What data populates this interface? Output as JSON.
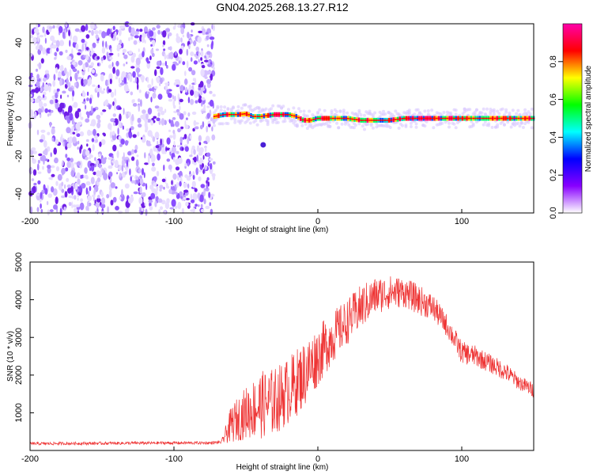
{
  "title": "GN04.2025.268.13.27.R12",
  "chart_data": [
    {
      "type": "heatmap",
      "xlabel": "Height of straight line (km)",
      "ylabel": "Frequency (Hz)",
      "xlim": [
        -200,
        150
      ],
      "ylim": [
        -50,
        50
      ],
      "xticks": [
        -200,
        -100,
        0,
        100
      ],
      "yticks": [
        -40,
        -20,
        0,
        20,
        40
      ],
      "noise_region_x": [
        -200,
        -72
      ],
      "ridge": {
        "x": [
          -72,
          -65,
          -60,
          -55,
          -50,
          -45,
          -40,
          -35,
          -30,
          -25,
          -20,
          -15,
          -10,
          -5,
          0,
          10,
          20,
          30,
          40,
          50,
          60,
          70,
          80,
          90,
          100,
          110,
          120,
          130,
          140,
          150
        ],
        "freq": [
          1,
          2,
          2,
          2,
          2.5,
          1,
          1,
          1.5,
          2,
          2,
          2,
          1,
          -1,
          -1,
          0,
          0,
          0,
          -1,
          -1,
          -1,
          0,
          0,
          0,
          0,
          0,
          0,
          0,
          0,
          0,
          0
        ]
      },
      "outlier": {
        "x": -38,
        "freq": -14
      },
      "grid": false
    },
    {
      "type": "line",
      "xlabel": "Height of straight line (km)",
      "ylabel": "SNR (10 * v/v)",
      "xlim": [
        -200,
        150
      ],
      "ylim": [
        0,
        5000
      ],
      "xticks": [
        -200,
        -100,
        0,
        100
      ],
      "yticks": [
        1000,
        2000,
        3000,
        4000,
        5000
      ],
      "grid": false,
      "series": [
        {
          "color": "#ee3333",
          "x": [
            -200,
            -150,
            -100,
            -75,
            -67,
            -60,
            -50,
            -40,
            -30,
            -20,
            -10,
            0,
            10,
            20,
            30,
            40,
            50,
            60,
            70,
            80,
            90,
            100,
            110,
            120,
            130,
            140,
            150
          ],
          "values": [
            180,
            190,
            200,
            200,
            220,
            700,
            1000,
            1200,
            1300,
            1600,
            2000,
            2500,
            3000,
            3400,
            3800,
            4100,
            4200,
            4200,
            4000,
            3800,
            3300,
            2600,
            2500,
            2300,
            2100,
            1800,
            1600
          ],
          "spread": [
            40,
            40,
            40,
            40,
            40,
            500,
            700,
            900,
            900,
            900,
            900,
            800,
            700,
            600,
            600,
            500,
            450,
            400,
            400,
            350,
            300,
            300,
            280,
            250,
            250,
            200,
            200
          ]
        }
      ]
    }
  ],
  "colorbar": {
    "label": "Normalized spectral amplitude",
    "ticks": [
      0.0,
      0.2,
      0.4,
      0.6,
      0.8
    ],
    "range": [
      0,
      1
    ],
    "colors": [
      "#ffffff",
      "#8800ff",
      "#0000ff",
      "#00ffff",
      "#00ff00",
      "#ffff00",
      "#ff0000",
      "#ff00aa"
    ]
  }
}
